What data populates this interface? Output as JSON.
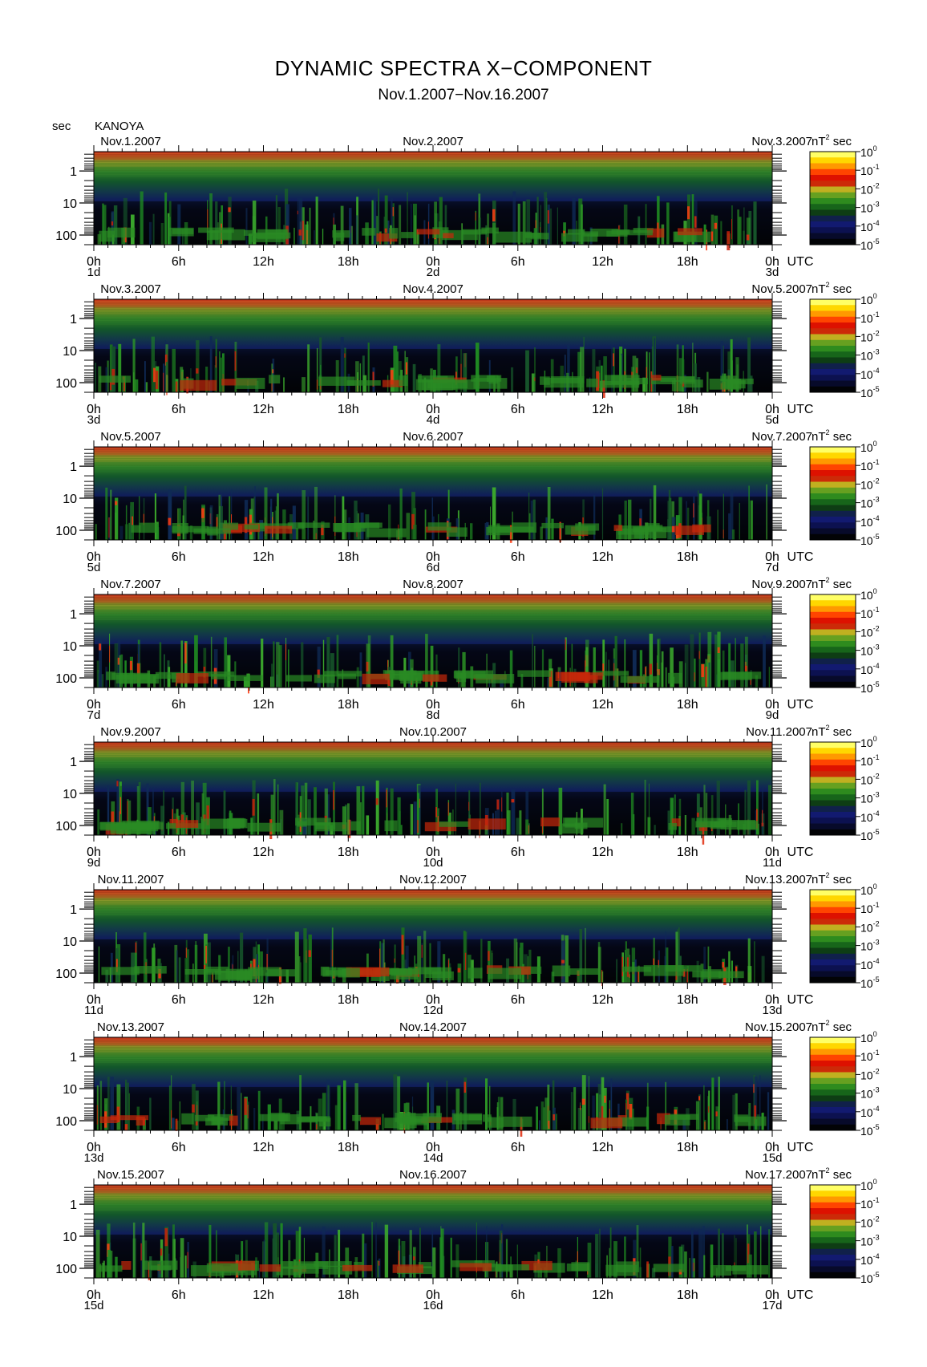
{
  "header": {
    "title": "DYNAMIC SPECTRA X−COMPONENT",
    "subtitle": "Nov.1.2007−Nov.16.2007",
    "y_unit": "sec",
    "station": "KANOYA"
  },
  "chart_data": {
    "type": "heatmap",
    "title": "DYNAMIC SPECTRA X−COMPONENT",
    "subtitle": "Nov.1.2007−Nov.16.2007",
    "ylabel": "sec",
    "station": "KANOYA",
    "y_scale": "log",
    "y_reversed": true,
    "yticks": [
      "1",
      "10",
      "100"
    ],
    "xticks": [
      "0h",
      "6h",
      "12h",
      "18h",
      "0h",
      "6h",
      "12h",
      "18h",
      "0h"
    ],
    "x_suffix": "UTC",
    "colorbar": {
      "unit_label": "nT",
      "unit_sup": "2",
      "unit_suffix": "sec",
      "scale": "log",
      "ticks": [
        {
          "base": "10",
          "exp": "0"
        },
        {
          "base": "10",
          "exp": "-1"
        },
        {
          "base": "10",
          "exp": "-2"
        },
        {
          "base": "10",
          "exp": "-3"
        },
        {
          "base": "10",
          "exp": "-4"
        },
        {
          "base": "10",
          "exp": "-5"
        }
      ],
      "colors": [
        "#ffff66",
        "#ffd700",
        "#ff9900",
        "#ff4400",
        "#dd1100",
        "#cc2a08",
        "#c0b020",
        "#66a020",
        "#2e8b1e",
        "#17651a",
        "#0e3d14",
        "#10204a",
        "#121a70",
        "#0c1150",
        "#070a2a",
        "#020306"
      ]
    },
    "panels": [
      {
        "date_left": "Nov.1.2007",
        "date_mid": "Nov.2.2007",
        "date_right": "Nov.3.2007",
        "day_left": "1d",
        "day_mid": "2d",
        "day_right": "3d"
      },
      {
        "date_left": "Nov.3.2007",
        "date_mid": "Nov.4.2007",
        "date_right": "Nov.5.2007",
        "day_left": "3d",
        "day_mid": "4d",
        "day_right": "5d"
      },
      {
        "date_left": "Nov.5.2007",
        "date_mid": "Nov.6.2007",
        "date_right": "Nov.7.2007",
        "day_left": "5d",
        "day_mid": "6d",
        "day_right": "7d"
      },
      {
        "date_left": "Nov.7.2007",
        "date_mid": "Nov.8.2007",
        "date_right": "Nov.9.2007",
        "day_left": "7d",
        "day_mid": "8d",
        "day_right": "9d"
      },
      {
        "date_left": "Nov.9.2007",
        "date_mid": "Nov.10.2007",
        "date_right": "Nov.11.2007",
        "day_left": "9d",
        "day_mid": "10d",
        "day_right": "11d"
      },
      {
        "date_left": "Nov.11.2007",
        "date_mid": "Nov.12.2007",
        "date_right": "Nov.13.2007",
        "day_left": "11d",
        "day_mid": "12d",
        "day_right": "13d"
      },
      {
        "date_left": "Nov.13.2007",
        "date_mid": "Nov.14.2007",
        "date_right": "Nov.15.2007",
        "day_left": "13d",
        "day_mid": "14d",
        "day_right": "15d"
      },
      {
        "date_left": "Nov.15.2007",
        "date_mid": "Nov.16.2007",
        "date_right": "Nov.17.2007",
        "day_left": "15d",
        "day_mid": "16d",
        "day_right": "17d"
      }
    ]
  }
}
